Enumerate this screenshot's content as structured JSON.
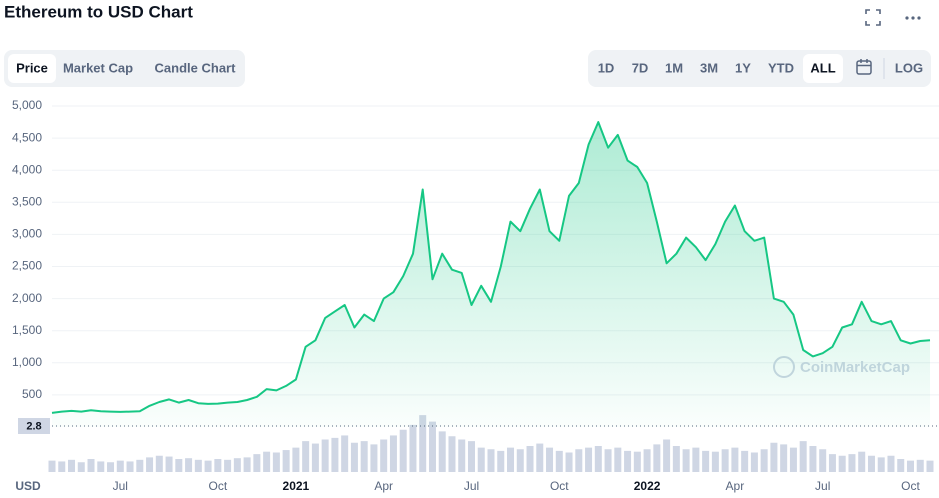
{
  "chart_data": {
    "type": "area-line",
    "title": "Ethereum to USD Chart",
    "tabs": [
      "Price",
      "Market Cap",
      "Candle Chart"
    ],
    "ranges": [
      "1D",
      "7D",
      "1M",
      "3M",
      "1Y",
      "YTD",
      "ALL"
    ],
    "log_button": "LOG",
    "currency": "USD",
    "baseline_label": "2.8",
    "watermark": "CoinMarketCap",
    "categories": [
      null,
      null,
      null,
      null,
      null,
      null,
      null,
      "Jul",
      null,
      null,
      null,
      null,
      null,
      null,
      null,
      null,
      null,
      "Oct",
      null,
      null,
      null,
      null,
      null,
      null,
      null,
      "2021",
      null,
      null,
      null,
      null,
      null,
      null,
      null,
      null,
      "Apr",
      null,
      null,
      null,
      null,
      null,
      null,
      null,
      null,
      "Jul",
      null,
      null,
      null,
      null,
      null,
      null,
      null,
      null,
      "Oct",
      null,
      null,
      null,
      null,
      null,
      null,
      null,
      null,
      "2022",
      null,
      null,
      null,
      null,
      null,
      null,
      null,
      null,
      "Apr",
      null,
      null,
      null,
      null,
      null,
      null,
      null,
      null,
      "Jul",
      null,
      null,
      null,
      null,
      null,
      null,
      null,
      null,
      "Oct",
      null,
      null
    ],
    "series": [
      {
        "color": "#16c784",
        "values": [
          220,
          240,
          250,
          240,
          260,
          245,
          240,
          235,
          240,
          245,
          330,
          390,
          430,
          380,
          420,
          370,
          360,
          365,
          380,
          390,
          420,
          470,
          590,
          570,
          640,
          740,
          1250,
          1350,
          1700,
          1800,
          1900,
          1550,
          1750,
          1650,
          2000,
          2100,
          2350,
          2700,
          3700,
          2300,
          2700,
          2450,
          2400,
          1900,
          2200,
          1950,
          2500,
          3200,
          3050,
          3400,
          3700,
          3050,
          2900,
          3600,
          3800,
          4400,
          4750,
          4350,
          4550,
          4150,
          4050,
          3800,
          3200,
          2550,
          2700,
          2950,
          2800,
          2600,
          2850,
          3200,
          3450,
          3050,
          2900,
          2950,
          2000,
          1950,
          1750,
          1200,
          1100,
          1150,
          1250,
          1550,
          1600,
          1950,
          1650,
          1600,
          1650,
          1350,
          1300,
          1340,
          1350
        ]
      }
    ],
    "volume": {
      "color": "#cfd6e4",
      "values": [
        14,
        13,
        15,
        12,
        16,
        13,
        12,
        14,
        13,
        15,
        18,
        20,
        19,
        16,
        17,
        15,
        14,
        16,
        15,
        17,
        18,
        22,
        25,
        24,
        27,
        30,
        38,
        35,
        40,
        42,
        45,
        36,
        38,
        34,
        40,
        45,
        52,
        58,
        70,
        62,
        50,
        44,
        40,
        38,
        30,
        28,
        26,
        30,
        28,
        32,
        35,
        30,
        26,
        24,
        28,
        30,
        32,
        28,
        30,
        26,
        25,
        28,
        34,
        40,
        32,
        28,
        30,
        26,
        25,
        28,
        30,
        26,
        24,
        28,
        36,
        34,
        30,
        38,
        32,
        28,
        22,
        20,
        22,
        25,
        20,
        18,
        20,
        16,
        14,
        15,
        14
      ]
    },
    "ylim": [
      0,
      5000
    ],
    "yticks": [
      {
        "value": 5000,
        "label": "5,000"
      },
      {
        "value": 4500,
        "label": "4,500"
      },
      {
        "value": 4000,
        "label": "4,000"
      },
      {
        "value": 3500,
        "label": "3,500"
      },
      {
        "value": 3000,
        "label": "3,000"
      },
      {
        "value": 2500,
        "label": "2,500"
      },
      {
        "value": 2000,
        "label": "2,000"
      },
      {
        "value": 1500,
        "label": "1,500"
      },
      {
        "value": 1000,
        "label": "1,000"
      },
      500
    ],
    "grid": true
  }
}
